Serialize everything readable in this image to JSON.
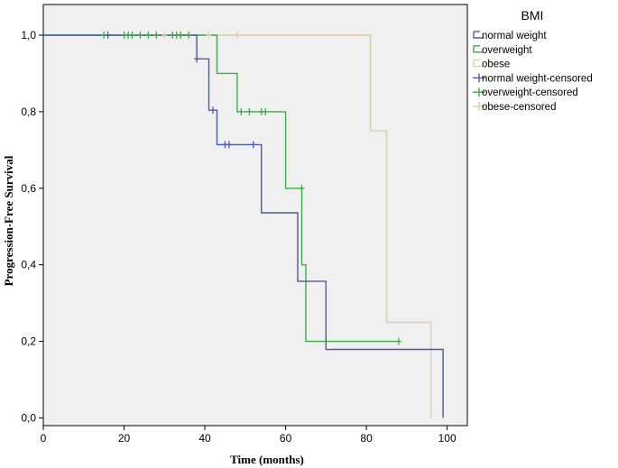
{
  "chart_data": {
    "type": "line",
    "step": true,
    "xlabel": "Time (months)",
    "ylabel": "Progression-Free Survival",
    "xlim": [
      0,
      105
    ],
    "ylim": [
      -0.02,
      1.08
    ],
    "x_ticks": [
      0,
      20,
      40,
      60,
      80,
      100
    ],
    "x_tick_labels": [
      "0",
      "20",
      "40",
      "60",
      "80",
      "100"
    ],
    "y_ticks": [
      0,
      0.2,
      0.4,
      0.6,
      0.8,
      1.0
    ],
    "y_tick_labels": [
      "0,0",
      "0,2",
      "0,4",
      "0,6",
      "0,8",
      "1,0"
    ],
    "grid": false,
    "plot_background": "#f0f0f0",
    "legend": {
      "title": "BMI",
      "placement": "right",
      "entries": [
        {
          "label": "normal weight",
          "color": "#4b5ba6",
          "kind": "line"
        },
        {
          "label": "overweight",
          "color": "#3faa4d",
          "kind": "line"
        },
        {
          "label": "obese",
          "color": "#d6d2a8",
          "kind": "line"
        },
        {
          "label": "normal weight-censored",
          "color": "#4b5ba6",
          "kind": "cross"
        },
        {
          "label": "overweight-censored",
          "color": "#3faa4d",
          "kind": "cross"
        },
        {
          "label": "obese-censored",
          "color": "#d6d2a8",
          "kind": "cross"
        }
      ]
    },
    "series": [
      {
        "name": "normal weight",
        "color": "#4b5ba6",
        "x": [
          0,
          38,
          38,
          41,
          41,
          43,
          43,
          54,
          54,
          63,
          63,
          70,
          70,
          99,
          99
        ],
        "y": [
          1.0,
          1.0,
          0.938,
          0.938,
          0.804,
          0.804,
          0.714,
          0.714,
          0.536,
          0.536,
          0.357,
          0.357,
          0.179,
          0.179,
          0.0
        ],
        "censored_x": [
          16,
          38,
          42,
          45,
          46,
          52
        ],
        "censored_y": [
          1.0,
          0.938,
          0.804,
          0.714,
          0.714,
          0.714
        ]
      },
      {
        "name": "overweight",
        "color": "#3faa4d",
        "x": [
          0,
          43,
          43,
          48,
          48,
          60,
          60,
          64,
          64,
          65,
          65,
          88
        ],
        "y": [
          1.0,
          1.0,
          0.9,
          0.9,
          0.8,
          0.8,
          0.6,
          0.6,
          0.4,
          0.4,
          0.2,
          0.2
        ],
        "censored_x": [
          15,
          20,
          21,
          22,
          24,
          26,
          28,
          32,
          33,
          34,
          36,
          49,
          51,
          54,
          55,
          64,
          88
        ],
        "censored_y": [
          1.0,
          1.0,
          1.0,
          1.0,
          1.0,
          1.0,
          1.0,
          1.0,
          1.0,
          1.0,
          1.0,
          0.8,
          0.8,
          0.8,
          0.8,
          0.6,
          0.2
        ]
      },
      {
        "name": "obese",
        "color": "#d6d2a8",
        "x": [
          0,
          81,
          81,
          85,
          85,
          96,
          96
        ],
        "y": [
          1.0,
          1.0,
          0.75,
          0.75,
          0.25,
          0.25,
          0.0
        ],
        "censored_x": [
          30,
          41,
          48
        ],
        "censored_y": [
          1.0,
          1.0,
          1.0
        ]
      }
    ]
  }
}
